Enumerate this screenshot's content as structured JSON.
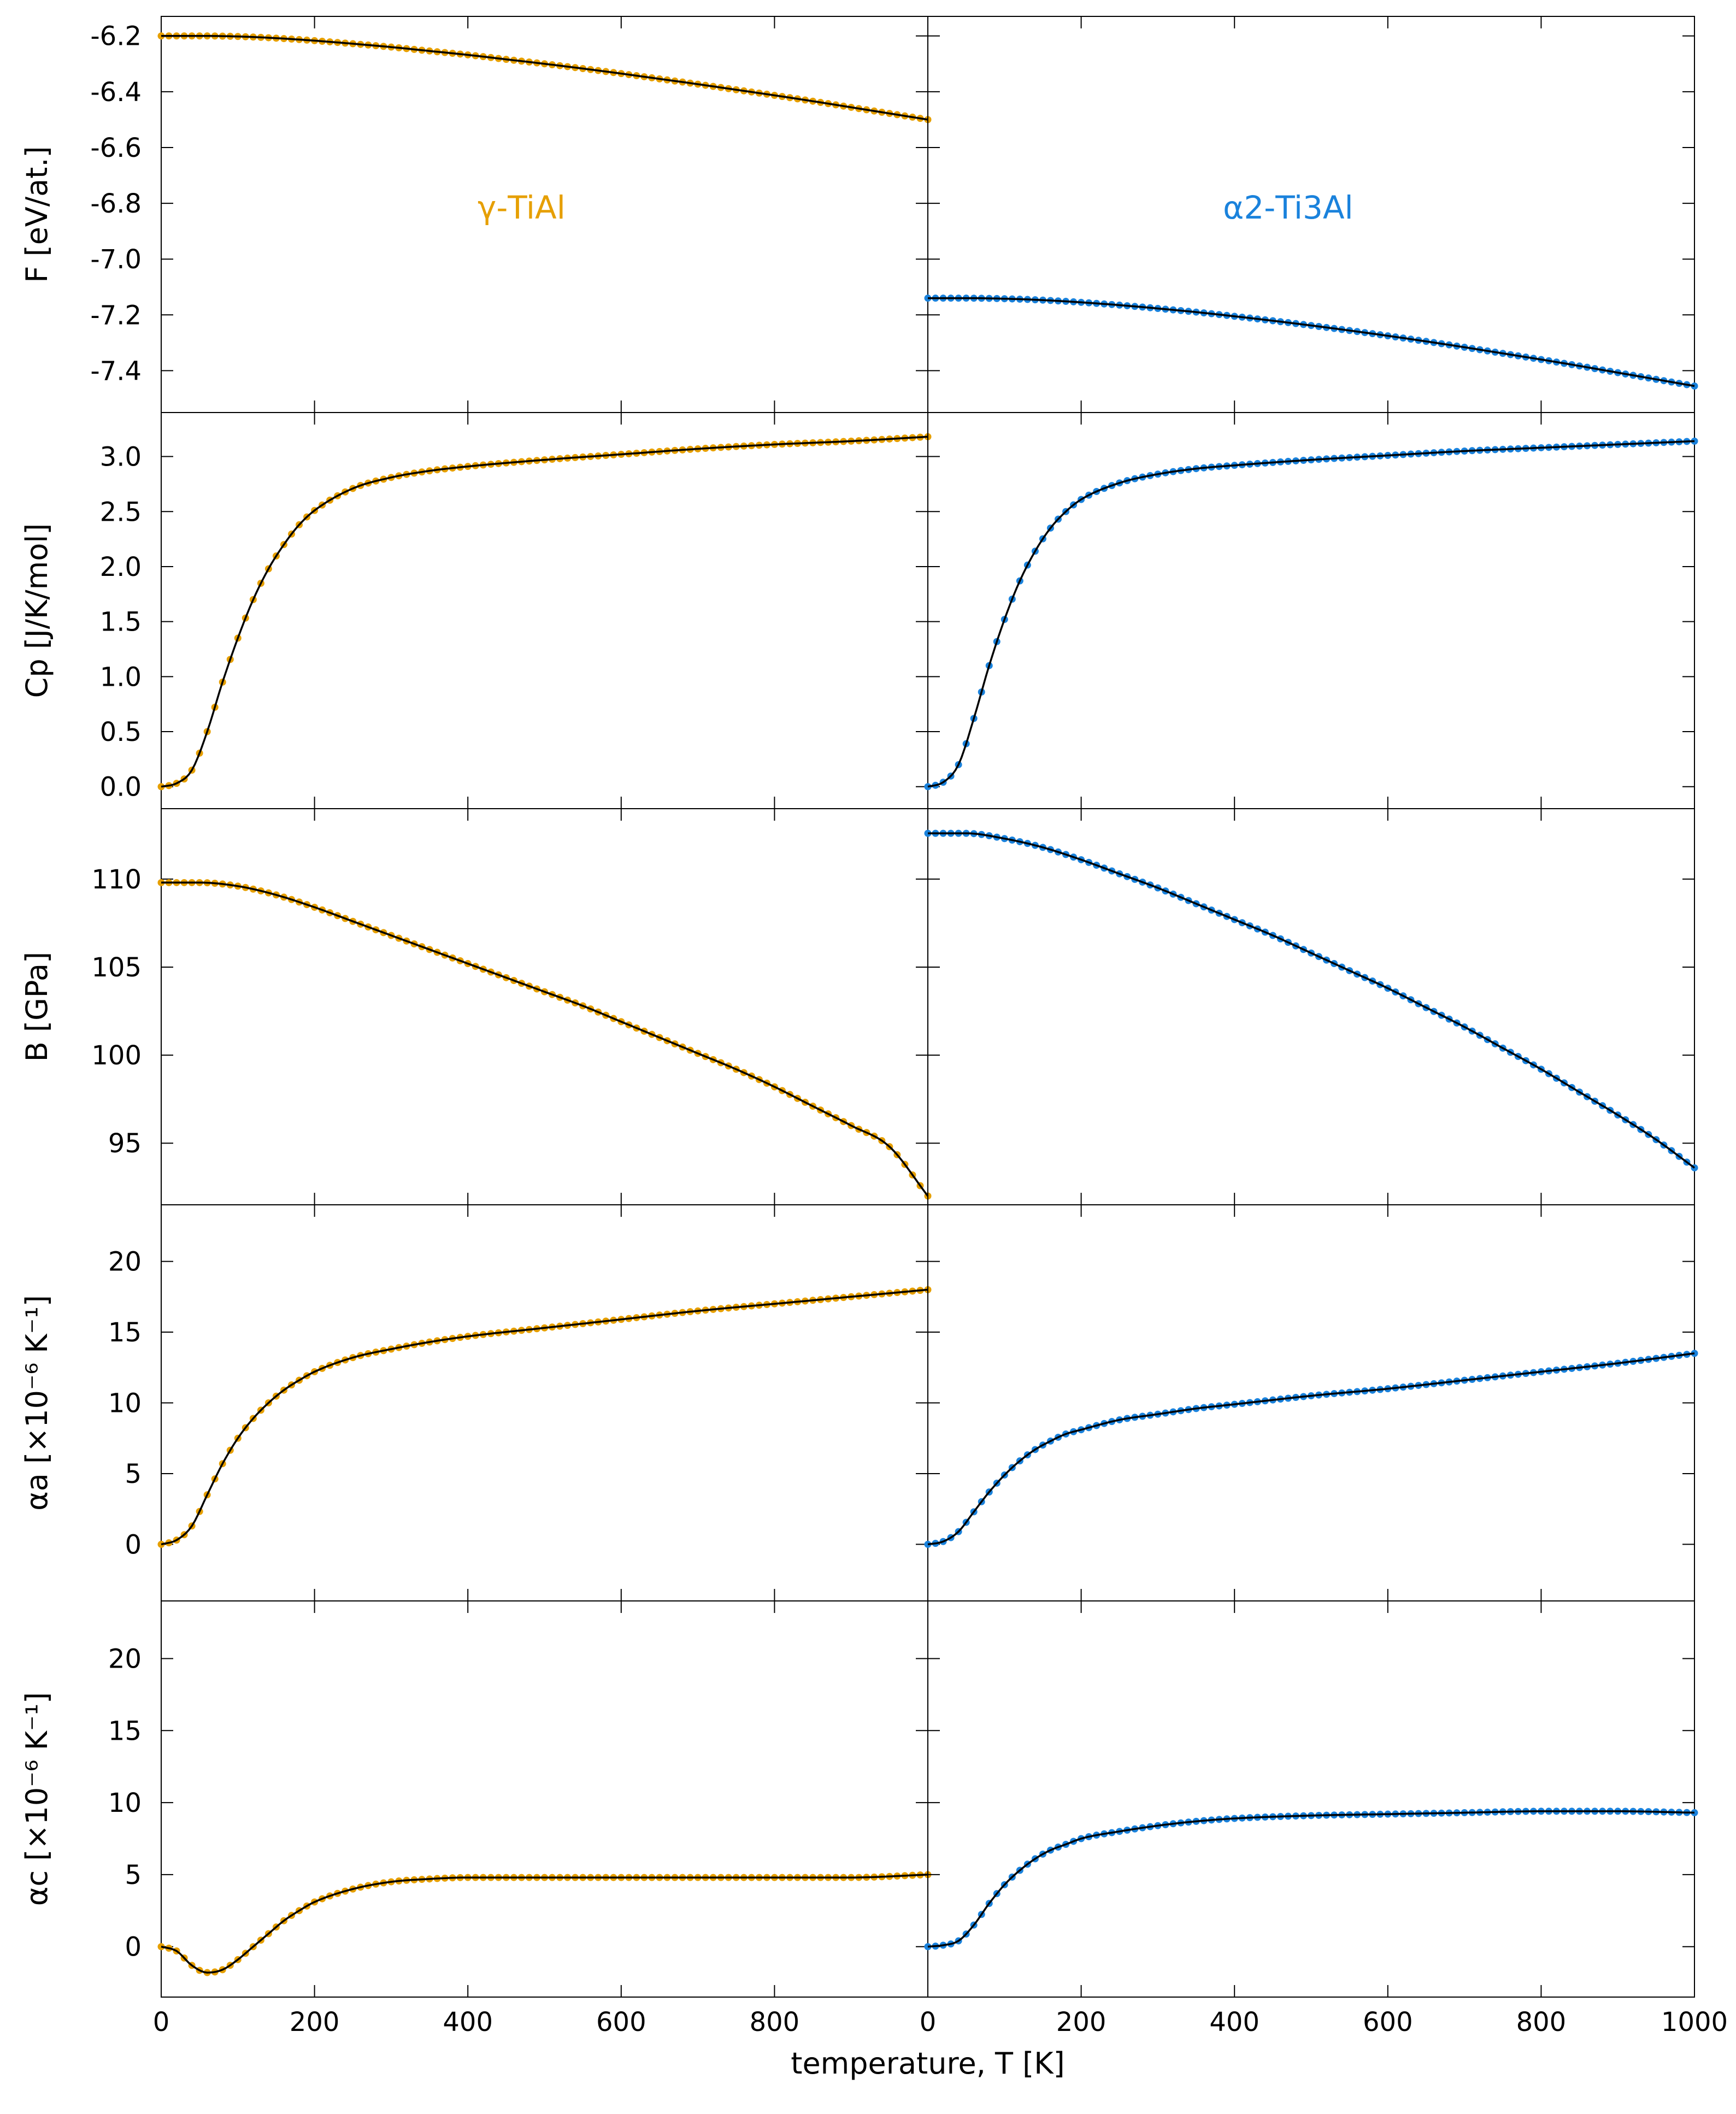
{
  "chart_data": {
    "type": "scatter",
    "layout": "5 rows x 2 columns, shared x-axis",
    "xlabel": "temperature, T [K]",
    "xlim": [
      0,
      1000
    ],
    "x_ticks_left": [
      "0",
      "200",
      "400",
      "600",
      "800"
    ],
    "x_ticks_right": [
      "0",
      "200",
      "400",
      "600",
      "800",
      "1000"
    ],
    "colors": {
      "gamma": "#e69f00",
      "alpha2": "#1a82dc",
      "fit": "#000000"
    },
    "materials": [
      {
        "id": "gamma",
        "label": "γ-TiAl"
      },
      {
        "id": "alpha2",
        "label": "α2-Ti3Al"
      }
    ],
    "rows": [
      {
        "id": "F",
        "ylabel": "F [eV/at.]",
        "ylim": [
          -7.55,
          -6.13
        ],
        "yticks": [
          -6.2,
          -6.4,
          -6.6,
          -6.8,
          -7.0,
          -7.2,
          -7.4
        ],
        "ytick_labels": [
          "-6.2",
          "-6.4",
          "-6.6",
          "-6.8",
          "-7.0",
          "-7.2",
          "-7.4"
        ],
        "gamma": {
          "x": [
            0,
            50,
            100,
            150,
            200,
            250,
            300,
            350,
            400,
            450,
            500,
            550,
            600,
            650,
            700,
            750,
            800,
            850,
            900,
            950,
            1000
          ],
          "y": [
            -6.2,
            -6.2,
            -6.202,
            -6.208,
            -6.217,
            -6.228,
            -6.24,
            -6.254,
            -6.268,
            -6.284,
            -6.3,
            -6.317,
            -6.335,
            -6.354,
            -6.373,
            -6.393,
            -6.413,
            -6.434,
            -6.456,
            -6.478,
            -6.5
          ]
        },
        "alpha2": {
          "x": [
            0,
            50,
            100,
            150,
            200,
            250,
            300,
            350,
            400,
            450,
            500,
            550,
            600,
            650,
            700,
            750,
            800,
            850,
            900,
            950,
            1000
          ],
          "y": [
            -7.14,
            -7.14,
            -7.142,
            -7.147,
            -7.155,
            -7.165,
            -7.177,
            -7.19,
            -7.205,
            -7.221,
            -7.238,
            -7.256,
            -7.275,
            -7.295,
            -7.316,
            -7.338,
            -7.36,
            -7.383,
            -7.407,
            -7.431,
            -7.455
          ]
        }
      },
      {
        "id": "Cp",
        "ylabel": "Cp [J/K/mol]",
        "ylim": [
          -0.2,
          3.4
        ],
        "yticks": [
          0.0,
          0.5,
          1.0,
          1.5,
          2.0,
          2.5,
          3.0
        ],
        "ytick_labels": [
          "0.0",
          "0.5",
          "1.0",
          "1.5",
          "2.0",
          "2.5",
          "3.0"
        ],
        "gamma": {
          "x": [
            0,
            20,
            40,
            60,
            80,
            100,
            120,
            140,
            160,
            180,
            200,
            250,
            300,
            350,
            400,
            500,
            600,
            700,
            800,
            900,
            1000
          ],
          "y": [
            0,
            0.03,
            0.15,
            0.5,
            0.95,
            1.35,
            1.7,
            1.98,
            2.2,
            2.38,
            2.51,
            2.71,
            2.81,
            2.87,
            2.91,
            2.97,
            3.02,
            3.07,
            3.11,
            3.14,
            3.18
          ]
        },
        "alpha2": {
          "x": [
            0,
            20,
            40,
            60,
            80,
            100,
            120,
            140,
            160,
            180,
            200,
            250,
            300,
            350,
            400,
            500,
            600,
            700,
            800,
            900,
            1000
          ],
          "y": [
            0,
            0.04,
            0.2,
            0.62,
            1.1,
            1.52,
            1.87,
            2.14,
            2.35,
            2.5,
            2.61,
            2.76,
            2.84,
            2.89,
            2.92,
            2.97,
            3.01,
            3.05,
            3.08,
            3.11,
            3.14
          ]
        }
      },
      {
        "id": "B",
        "ylabel": "B [GPa]",
        "ylim": [
          91.5,
          114.0
        ],
        "yticks": [
          95,
          100,
          105,
          110
        ],
        "ytick_labels": [
          "95",
          "100",
          "105",
          "110"
        ],
        "gamma": {
          "x": [
            0,
            50,
            100,
            150,
            200,
            250,
            300,
            350,
            400,
            450,
            500,
            550,
            600,
            650,
            700,
            750,
            800,
            850,
            900,
            950,
            1000
          ],
          "y": [
            109.8,
            109.8,
            109.6,
            109.1,
            108.4,
            107.6,
            106.8,
            106.0,
            105.2,
            104.4,
            103.6,
            102.8,
            101.9,
            101.0,
            100.1,
            99.2,
            98.2,
            97.1,
            96.0,
            94.8,
            92.0
          ]
        },
        "alpha2": {
          "x": [
            0,
            50,
            100,
            150,
            200,
            250,
            300,
            350,
            400,
            450,
            500,
            550,
            600,
            650,
            700,
            750,
            800,
            850,
            900,
            950,
            1000
          ],
          "y": [
            112.6,
            112.6,
            112.3,
            111.8,
            111.1,
            110.3,
            109.5,
            108.6,
            107.7,
            106.8,
            105.8,
            104.8,
            103.8,
            102.7,
            101.6,
            100.4,
            99.2,
            97.9,
            96.6,
            95.2,
            93.6
          ]
        }
      },
      {
        "id": "alpha_a",
        "ylabel": "αa [×10⁻⁶ K⁻¹]",
        "ylim": [
          -4,
          24
        ],
        "yticks": [
          0,
          5,
          10,
          15,
          20
        ],
        "ytick_labels": [
          "0",
          "5",
          "10",
          "15",
          "20"
        ],
        "gamma": {
          "x": [
            0,
            20,
            40,
            60,
            80,
            100,
            120,
            140,
            160,
            180,
            200,
            250,
            300,
            350,
            400,
            500,
            600,
            700,
            800,
            900,
            1000
          ],
          "y": [
            0,
            0.3,
            1.3,
            3.5,
            5.7,
            7.5,
            8.9,
            10.0,
            10.9,
            11.6,
            12.2,
            13.2,
            13.8,
            14.3,
            14.7,
            15.3,
            15.9,
            16.5,
            17.0,
            17.5,
            18.0
          ]
        },
        "alpha2": {
          "x": [
            0,
            20,
            40,
            60,
            80,
            100,
            120,
            140,
            160,
            180,
            200,
            250,
            300,
            350,
            400,
            500,
            600,
            700,
            800,
            900,
            1000
          ],
          "y": [
            0,
            0.2,
            0.9,
            2.3,
            3.7,
            4.9,
            5.9,
            6.7,
            7.3,
            7.8,
            8.1,
            8.8,
            9.2,
            9.6,
            9.9,
            10.5,
            11.0,
            11.6,
            12.2,
            12.8,
            13.5
          ]
        }
      },
      {
        "id": "alpha_c",
        "ylabel": "αc [×10⁻⁶ K⁻¹]",
        "ylim": [
          -3.5,
          24
        ],
        "yticks": [
          0,
          5,
          10,
          15,
          20
        ],
        "ytick_labels": [
          "0",
          "5",
          "10",
          "15",
          "20"
        ],
        "gamma": {
          "x": [
            0,
            20,
            40,
            60,
            80,
            100,
            120,
            140,
            160,
            180,
            200,
            250,
            300,
            350,
            400,
            500,
            600,
            700,
            800,
            900,
            1000
          ],
          "y": [
            0,
            -0.3,
            -1.3,
            -1.8,
            -1.6,
            -0.9,
            0,
            0.9,
            1.8,
            2.5,
            3.1,
            4.0,
            4.5,
            4.7,
            4.8,
            4.8,
            4.8,
            4.8,
            4.8,
            4.8,
            5.0
          ]
        },
        "alpha2": {
          "x": [
            0,
            20,
            40,
            60,
            80,
            100,
            120,
            140,
            160,
            180,
            200,
            250,
            300,
            350,
            400,
            500,
            600,
            700,
            800,
            900,
            1000
          ],
          "y": [
            0,
            0.1,
            0.4,
            1.5,
            3.0,
            4.3,
            5.3,
            6.1,
            6.7,
            7.1,
            7.5,
            8.0,
            8.4,
            8.7,
            8.9,
            9.1,
            9.2,
            9.3,
            9.4,
            9.4,
            9.3
          ]
        }
      }
    ]
  }
}
